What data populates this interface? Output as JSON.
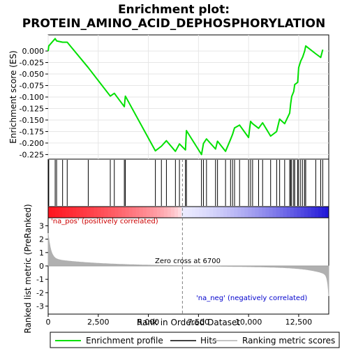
{
  "chart_data": {
    "type": "line",
    "title_line1": "Enrichment plot:",
    "title_line2": "PROTEIN_AMINO_ACID_DEPHOSPHORYLATION",
    "xlabel": "Rank in Ordered Dataset",
    "es_ylabel": "Enrichment score (ES)",
    "metric_ylabel": "Ranked list metric (PreRanked)",
    "xlim": [
      0,
      14000
    ],
    "x_ticks": [
      0,
      2500,
      5000,
      7500,
      10000,
      12500
    ],
    "x_tick_labels": [
      "0",
      "2,500",
      "5,000",
      "7,500",
      "10,000",
      "12,500"
    ],
    "es_ylim": [
      -0.235,
      0.035
    ],
    "es_ticks": [
      0.0,
      -0.025,
      -0.05,
      -0.075,
      -0.1,
      -0.125,
      -0.15,
      -0.175,
      -0.2,
      -0.225
    ],
    "es_tick_labels": [
      "0.000",
      "-0.025",
      "-0.050",
      "-0.075",
      "-0.100",
      "-0.125",
      "-0.150",
      "-0.175",
      "-0.200",
      "-0.225"
    ],
    "metric_ylim": [
      -3.6,
      3.6
    ],
    "metric_ticks": [
      3,
      2,
      1,
      0,
      -1,
      -2,
      -3
    ],
    "metric_tick_labels": [
      "3",
      "2",
      "1",
      "0",
      "-1",
      "-2",
      "-3"
    ],
    "zero_cross": 6700,
    "zero_cross_label": "Zero cross at 6700",
    "pos_label": "'na_pos' (positively correlated)",
    "neg_label": "'na_neg' (negatively correlated)",
    "legend": [
      "Enrichment profile",
      "Hits",
      "Ranking metric scores"
    ],
    "colors": {
      "es_line": "#00e000",
      "hits": "#000000",
      "metric": "#b0b0b0",
      "pos_text": "#cc0000",
      "neg_text": "#0000cc",
      "zero_line": "#808080"
    },
    "hits": [
      30,
      350,
      420,
      720,
      950,
      2000,
      3100,
      3300,
      3800,
      3850,
      5350,
      5650,
      5900,
      6350,
      6550,
      6850,
      6900,
      7650,
      7750,
      7900,
      8350,
      8450,
      8850,
      9100,
      9200,
      9300,
      9550,
      10000,
      10100,
      10200,
      10500,
      10700,
      11100,
      11400,
      11550,
      11800,
      12050,
      12100,
      12150,
      12250,
      12300,
      12450,
      12500,
      12600,
      12700,
      12800,
      12850,
      13350,
      13600,
      13700
    ],
    "es_x": [
      0,
      30,
      350,
      420,
      720,
      950,
      2000,
      3100,
      3300,
      3800,
      3850,
      5350,
      5650,
      5900,
      6350,
      6550,
      6850,
      6900,
      7650,
      7750,
      7900,
      8350,
      8450,
      8850,
      9100,
      9200,
      9300,
      9550,
      10000,
      10100,
      10200,
      10500,
      10700,
      11100,
      11400,
      11550,
      11800,
      12050,
      12100,
      12150,
      12250,
      12300,
      12450,
      12500,
      12600,
      12700,
      12800,
      12850,
      13350,
      13600,
      13700
    ],
    "es_y": [
      0.0,
      0.011,
      0.027,
      0.022,
      0.019,
      0.019,
      -0.036,
      -0.098,
      -0.092,
      -0.121,
      -0.098,
      -0.217,
      -0.207,
      -0.195,
      -0.218,
      -0.202,
      -0.215,
      -0.173,
      -0.225,
      -0.201,
      -0.191,
      -0.213,
      -0.196,
      -0.218,
      -0.192,
      -0.181,
      -0.167,
      -0.161,
      -0.188,
      -0.153,
      -0.158,
      -0.168,
      -0.156,
      -0.185,
      -0.175,
      -0.148,
      -0.158,
      -0.135,
      -0.115,
      -0.099,
      -0.088,
      -0.073,
      -0.068,
      -0.036,
      -0.022,
      -0.013,
      0.0,
      0.011,
      -0.006,
      -0.014,
      0.003
    ]
  }
}
